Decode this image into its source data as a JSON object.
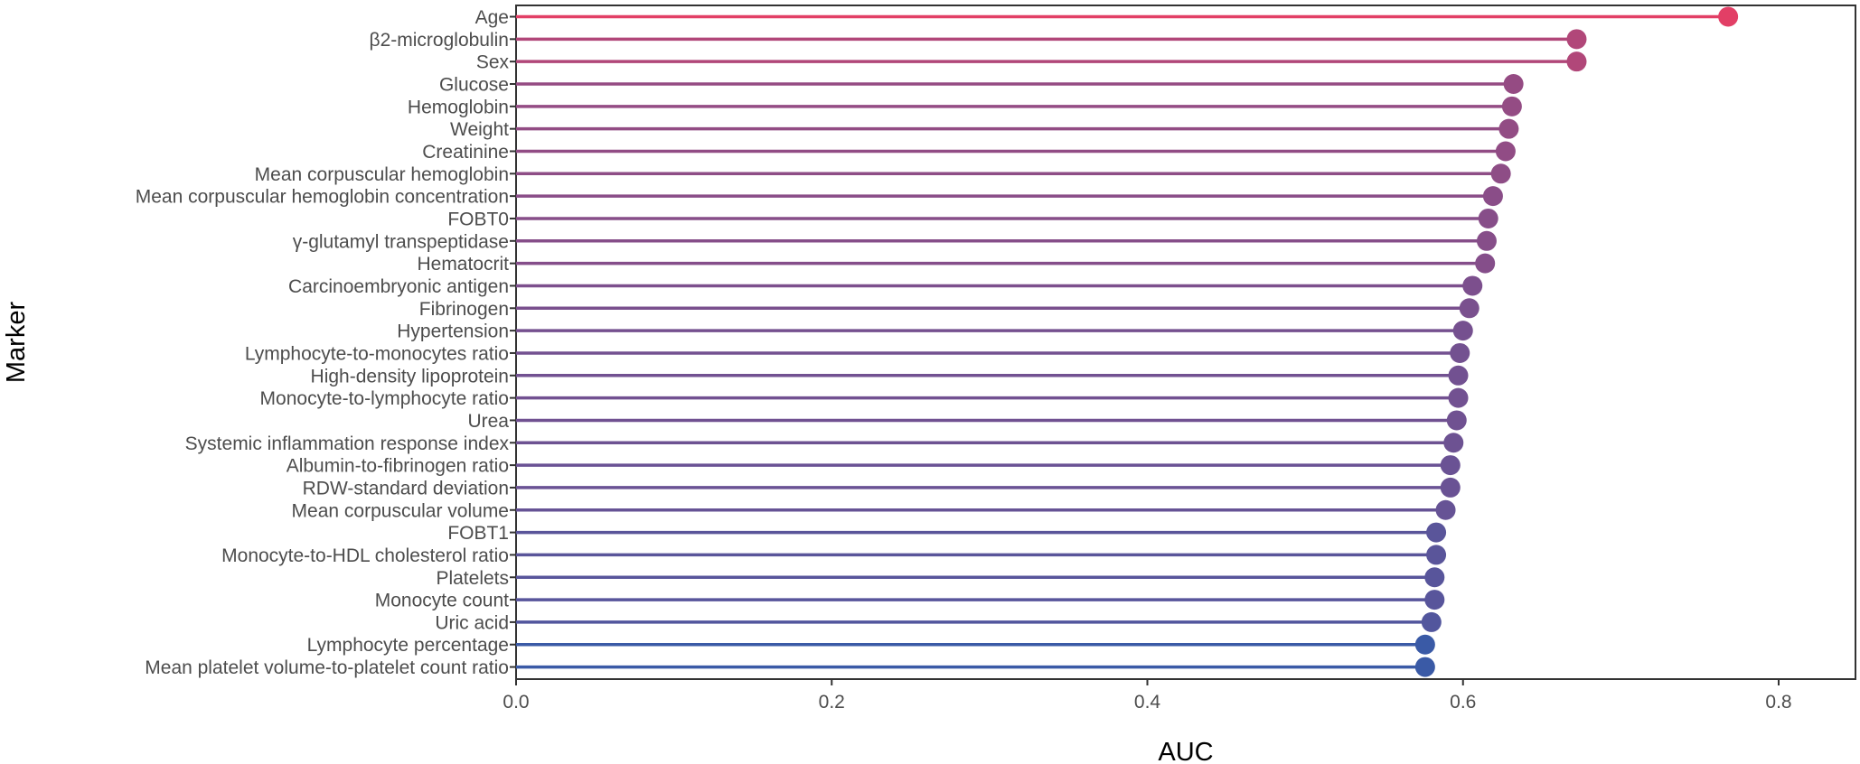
{
  "chart_data": {
    "type": "lollipop",
    "orientation": "horizontal",
    "xlabel": "AUC",
    "ylabel": "Marker",
    "xlim": [
      0,
      0.85
    ],
    "xticks": [
      "0.0",
      "0.2",
      "0.4",
      "0.6",
      "0.8"
    ],
    "grid": false,
    "legend": "none",
    "color_low": "#3a5aa6",
    "color_high": "#e23f66",
    "categories": [
      "Age",
      "β2-microglobulin",
      "Sex",
      "Glucose",
      "Hemoglobin",
      "Weight",
      "Creatinine",
      "Mean corpuscular hemoglobin",
      "Mean corpuscular hemoglobin concentration",
      "FOBT0",
      "γ-glutamyl transpeptidase",
      "Hematocrit",
      "Carcinoembryonic antigen",
      "Fibrinogen",
      "Hypertension",
      "Lymphocyte-to-monocytes ratio",
      "High-density lipoprotein",
      "Monocyte-to-lymphocyte ratio",
      "Urea",
      "Systemic inflammation response index",
      "Albumin-to-fibrinogen ratio",
      "RDW-standard deviation",
      "Mean corpuscular volume",
      "FOBT1",
      "Monocyte-to-HDL cholesterol ratio",
      "Platelets",
      "Monocyte count",
      "Uric acid",
      "Lymphocyte percentage",
      "Mean platelet volume-to-platelet count ratio"
    ],
    "values": [
      0.768,
      0.672,
      0.672,
      0.632,
      0.631,
      0.629,
      0.627,
      0.624,
      0.619,
      0.616,
      0.615,
      0.614,
      0.606,
      0.604,
      0.6,
      0.598,
      0.597,
      0.597,
      0.596,
      0.594,
      0.592,
      0.592,
      0.589,
      0.583,
      0.583,
      0.582,
      0.582,
      0.58,
      0.576,
      0.576
    ]
  }
}
